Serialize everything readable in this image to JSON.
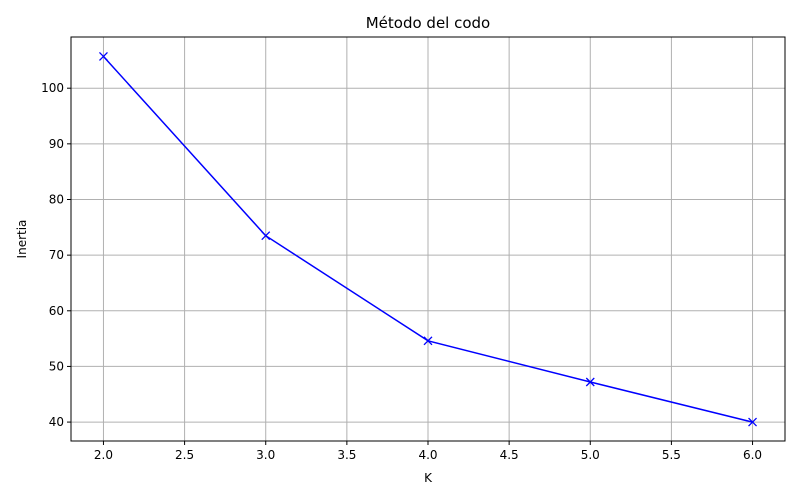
{
  "chart_data": {
    "type": "line",
    "title": "Método del codo",
    "xlabel": "K",
    "ylabel": "Inertia",
    "xlim": [
      1.8,
      6.2
    ],
    "ylim": [
      36.6,
      109.2
    ],
    "xticks": [
      2.0,
      2.5,
      3.0,
      3.5,
      4.0,
      4.5,
      5.0,
      5.5,
      6.0
    ],
    "xtick_labels": [
      "2.0",
      "2.5",
      "3.0",
      "3.5",
      "4.0",
      "4.5",
      "5.0",
      "5.5",
      "6.0"
    ],
    "yticks": [
      40,
      50,
      60,
      70,
      80,
      90,
      100
    ],
    "ytick_labels": [
      "40",
      "50",
      "60",
      "70",
      "80",
      "90",
      "100"
    ],
    "grid": true,
    "series": [
      {
        "x": [
          2,
          3,
          4,
          5,
          6
        ],
        "y": [
          105.7,
          73.5,
          54.6,
          47.2,
          40.0
        ],
        "color": "#0000ff",
        "marker": "x",
        "line_style": "solid"
      }
    ]
  }
}
